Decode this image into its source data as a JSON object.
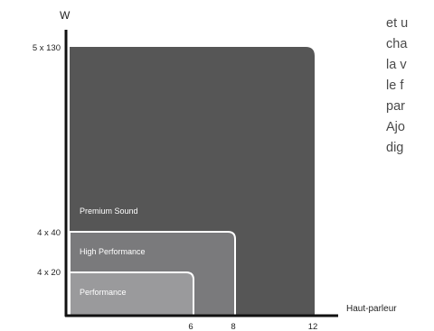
{
  "diagram": {
    "y_axis_label": "W",
    "x_axis_label": "Haut-parleur",
    "y_ticks": [
      "5 x 130",
      "4 x 40",
      "4 x 20"
    ],
    "x_ticks": [
      "6",
      "8",
      "12"
    ],
    "tiers": [
      {
        "name": "Premium Sound",
        "max_speakers": 12,
        "power": "5 x 130",
        "color": "#565656"
      },
      {
        "name": "High Performance",
        "max_speakers": 8,
        "power": "4 x 40",
        "color": "#7a7a7c"
      },
      {
        "name": "Performance",
        "max_speakers": 6,
        "power": "4 x 20",
        "color": "#9a9a9c"
      }
    ]
  },
  "side_text": {
    "lines": [
      "et u",
      "cha",
      "la v",
      "le f",
      "par",
      "Ajo",
      "dig"
    ]
  }
}
